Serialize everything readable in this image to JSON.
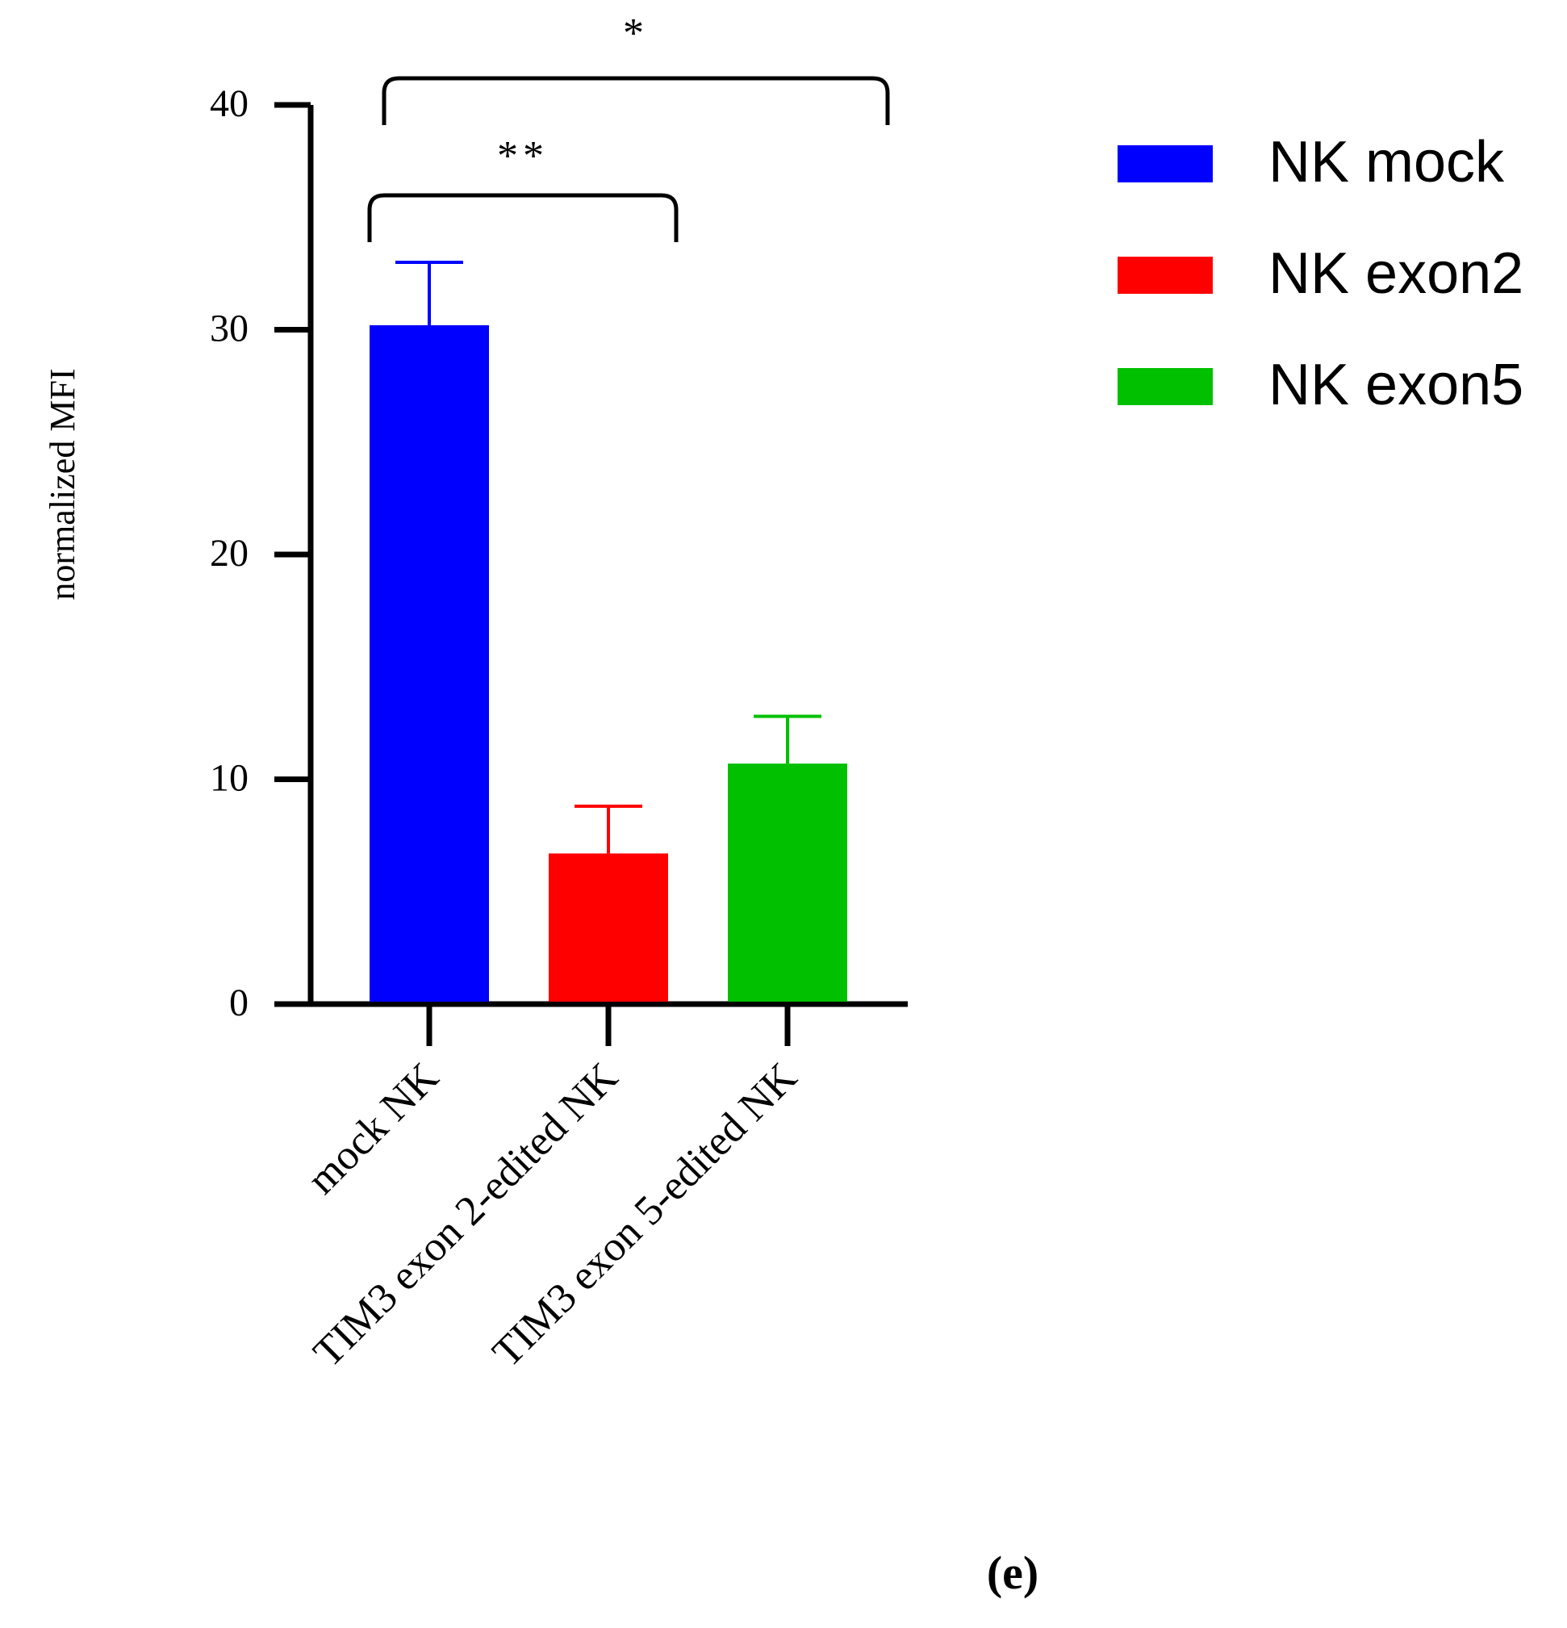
{
  "chart_data": {
    "type": "bar",
    "title": "",
    "xlabel": "",
    "ylabel": "normalized MFI",
    "ylim": [
      0,
      40
    ],
    "yticks": [
      "0",
      "10",
      "20",
      "30",
      "40"
    ],
    "categories": [
      "mock NK",
      "TIM3 exon 2-edited NK",
      "TIM3 exon 5-edited NK"
    ],
    "series": [
      {
        "name": "NK mock",
        "category": "mock NK",
        "value": 30.2,
        "error": 2.8,
        "color": "#0000ff"
      },
      {
        "name": "NK exon2",
        "category": "TIM3 exon 2-edited NK",
        "value": 6.7,
        "error": 2.1,
        "color": "#ff0000"
      },
      {
        "name": "NK exon5",
        "category": "TIM3 exon 5-edited NK",
        "value": 10.7,
        "error": 2.1,
        "color": "#00c000"
      }
    ],
    "significance": [
      {
        "from": "mock NK",
        "to": "TIM3 exon 5-edited NK",
        "label": "*"
      },
      {
        "from": "mock NK",
        "to": "TIM3 exon 2-edited NK",
        "label": "**"
      }
    ],
    "legend_position": "top-right",
    "grid": false,
    "panel_label": "(e)"
  }
}
